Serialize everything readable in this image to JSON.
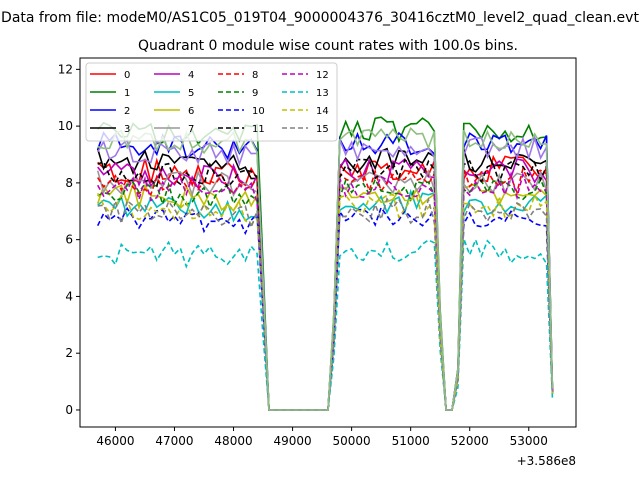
{
  "chart_data": {
    "type": "line",
    "suptitle": "Data from file: modeM0/AS1C05_019T04_9000004376_30416cztM0_level2_quad_clean.evt",
    "title": "Quadrant 0 module wise count rates with 100.0s bins.",
    "xlabel": "",
    "ylabel": "",
    "x_offset_label": "+3.586e8",
    "xlim": [
      45400,
      53800
    ],
    "ylim": [
      -0.6,
      12.4
    ],
    "xticks": [
      46000,
      47000,
      48000,
      49000,
      50000,
      51000,
      52000,
      53000
    ],
    "xtick_labels": [
      "46000",
      "47000",
      "48000",
      "49000",
      "50000",
      "51000",
      "52000",
      "53000"
    ],
    "yticks": [
      0,
      2,
      4,
      6,
      8,
      10,
      12
    ],
    "ytick_labels": [
      "0",
      "2",
      "4",
      "6",
      "8",
      "10",
      "12"
    ],
    "grid": false,
    "legend": {
      "placement": "top-left",
      "columns": 4
    },
    "time_grid": {
      "segments": [
        [
          45700,
          48500
        ],
        [
          49700,
          51400
        ],
        [
          51900,
          53400
        ]
      ],
      "bin": 100
    },
    "series": [
      {
        "name": "0",
        "color": "#ff0000",
        "dash": "solid",
        "level": 8.5,
        "amp": 0.45
      },
      {
        "name": "1",
        "color": "#008000",
        "dash": "solid",
        "level": 9.9,
        "amp": 0.45
      },
      {
        "name": "2",
        "color": "#0000ff",
        "dash": "solid",
        "level": 9.4,
        "amp": 0.4
      },
      {
        "name": "3",
        "color": "#000000",
        "dash": "solid",
        "level": 8.8,
        "amp": 0.45
      },
      {
        "name": "4",
        "color": "#bf00bf",
        "dash": "solid",
        "level": 8.4,
        "amp": 0.45
      },
      {
        "name": "5",
        "color": "#00bfbf",
        "dash": "solid",
        "level": 7.3,
        "amp": 0.45
      },
      {
        "name": "6",
        "color": "#bfbf00",
        "dash": "solid",
        "level": 7.6,
        "amp": 0.45
      },
      {
        "name": "7",
        "color": "#999999",
        "dash": "solid",
        "level": 8.1,
        "amp": 0.45
      },
      {
        "name": "8",
        "color": "#ff0000",
        "dash": "dashed",
        "level": 8.1,
        "amp": 0.45
      },
      {
        "name": "9",
        "color": "#008000",
        "dash": "dashed",
        "level": 7.7,
        "amp": 0.45
      },
      {
        "name": "10",
        "color": "#0000ff",
        "dash": "dashed",
        "level": 6.8,
        "amp": 0.35
      },
      {
        "name": "11",
        "color": "#000000",
        "dash": "dashed",
        "level": 8.4,
        "amp": 0.45
      },
      {
        "name": "12",
        "color": "#bf00bf",
        "dash": "dashed",
        "level": 7.9,
        "amp": 0.45
      },
      {
        "name": "13",
        "color": "#00bfbf",
        "dash": "dashed",
        "level": 5.6,
        "amp": 0.45
      },
      {
        "name": "14",
        "color": "#bfbf00",
        "dash": "dashed",
        "level": 7.2,
        "amp": 0.45
      },
      {
        "name": "15",
        "color": "#808080",
        "dash": "dashed",
        "level": 7.0,
        "amp": 0.45
      }
    ],
    "special_series": [
      {
        "name": "",
        "color": "#9e78e8",
        "level": 9.2,
        "amp": 0.4
      },
      {
        "name": "",
        "color": "#8fbf7f",
        "level": 9.6,
        "amp": 0.4
      }
    ]
  }
}
